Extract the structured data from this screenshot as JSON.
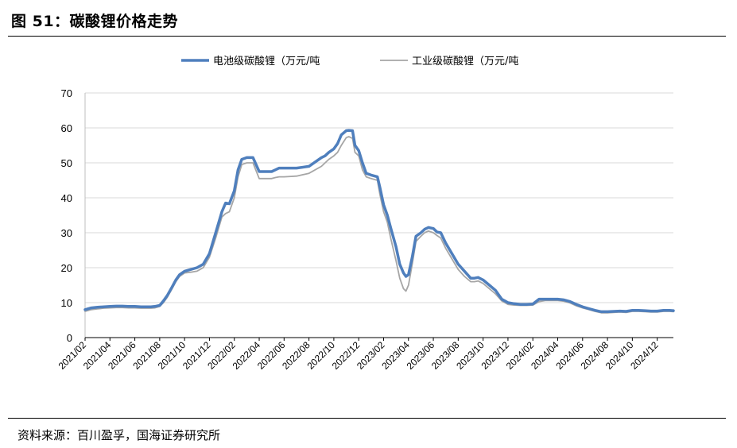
{
  "figure": {
    "title": "图 51：碳酸锂价格走势",
    "source": "资料来源：百川盈孚，国海证券研究所"
  },
  "chart_data": {
    "type": "line",
    "ylim": [
      0,
      70
    ],
    "yticks": [
      0,
      10,
      20,
      30,
      40,
      50,
      60,
      70
    ],
    "xlim": [
      0,
      47.3
    ],
    "xticks": [
      "2021/02",
      "2021/04",
      "2021/06",
      "2021/08",
      "2021/10",
      "2021/12",
      "2022/02",
      "2022/04",
      "2022/06",
      "2022/08",
      "2022/10",
      "2022/12",
      "2023/02",
      "2023/04",
      "2023/06",
      "2023/08",
      "2023/10",
      "2023/12",
      "2024/02",
      "2024/04",
      "2024/06",
      "2024/08",
      "2024/10",
      "2024/12"
    ],
    "grid": "horizontal",
    "legend": "top",
    "series": [
      {
        "name": "电池级碳酸锂（万元/吨",
        "color": "#4f7fbd",
        "x": [
          0,
          0.5,
          1,
          1.5,
          2,
          2.5,
          3,
          3.5,
          4,
          4.5,
          5,
          5.3,
          5.6,
          6,
          6.3,
          6.6,
          7,
          7.3,
          7.6,
          8,
          8.5,
          9,
          9.5,
          10,
          10.5,
          11,
          11.3,
          11.6,
          12,
          12.3,
          12.6,
          13,
          13.3,
          13.5,
          14,
          15,
          15.3,
          15.6,
          16,
          17,
          18,
          19,
          19.3,
          19.6,
          20,
          20.3,
          20.6,
          21,
          21.2,
          21.5,
          21.7,
          22,
          22.3,
          22.6,
          23,
          23.5,
          23.7,
          24,
          24.3,
          24.6,
          25,
          25.3,
          25.6,
          25.8,
          26,
          26.3,
          26.6,
          27,
          27.3,
          27.6,
          28,
          28.3,
          28.6,
          29,
          29.5,
          30,
          30.5,
          31,
          31.3,
          31.6,
          32,
          32.5,
          33,
          33.5,
          34,
          34.5,
          35,
          35.5,
          36,
          36.5,
          37,
          37.5,
          38,
          38.5,
          39,
          39.5,
          40,
          40.5,
          41,
          41.5,
          42,
          42.5,
          43,
          43.5,
          44,
          44.5,
          45,
          45.5,
          46,
          46.5,
          47,
          47.3
        ],
        "y": [
          8,
          8.5,
          8.7,
          8.8,
          8.9,
          9,
          9,
          8.9,
          8.9,
          8.8,
          8.8,
          8.8,
          8.9,
          9.2,
          10.5,
          12,
          14.5,
          16.5,
          18,
          19,
          19.5,
          20,
          21,
          24,
          30,
          36,
          38.5,
          38.3,
          42,
          48,
          51,
          51.5,
          51.5,
          51.5,
          47.5,
          47.5,
          48,
          48.5,
          48.5,
          48.5,
          49,
          51.5,
          52,
          53,
          54,
          55.5,
          58,
          59.2,
          59.3,
          59.2,
          55,
          53.5,
          50,
          47,
          46.5,
          46,
          43,
          38,
          35,
          31,
          26,
          21,
          18.5,
          17.5,
          18,
          23,
          29,
          30,
          31,
          31.5,
          31.2,
          30.2,
          30,
          27,
          24,
          21,
          19,
          17,
          17,
          17.2,
          16.5,
          15,
          13.5,
          11,
          10,
          9.7,
          9.5,
          9.5,
          9.6,
          11,
          11,
          11,
          11,
          10.8,
          10.3,
          9.5,
          8.8,
          8.3,
          7.8,
          7.4,
          7.4,
          7.5,
          7.6,
          7.5,
          7.8,
          7.8,
          7.7,
          7.6,
          7.6,
          7.8,
          7.8,
          7.7
        ]
      },
      {
        "name": "工业级碳酸锂（万元/吨",
        "color": "#a6a6a6",
        "x": [
          0,
          0.5,
          1,
          1.5,
          2,
          2.5,
          3,
          3.5,
          4,
          4.5,
          5,
          5.3,
          5.6,
          6,
          6.3,
          6.6,
          7,
          7.3,
          7.6,
          8,
          8.5,
          9,
          9.5,
          10,
          10.5,
          11,
          11.3,
          11.6,
          12,
          12.3,
          12.6,
          13,
          13.3,
          13.5,
          14,
          15,
          15.3,
          15.6,
          16,
          17,
          18,
          19,
          19.3,
          19.6,
          20,
          20.3,
          20.6,
          21,
          21.2,
          21.5,
          21.7,
          22,
          22.3,
          22.6,
          23,
          23.5,
          23.7,
          24,
          24.3,
          24.6,
          25,
          25.3,
          25.6,
          25.8,
          26,
          26.3,
          26.6,
          27,
          27.3,
          27.6,
          28,
          28.3,
          28.6,
          29,
          29.5,
          30,
          30.5,
          31,
          31.3,
          31.6,
          32,
          32.5,
          33,
          33.5,
          34,
          34.5,
          35,
          35.5,
          36,
          36.5,
          37,
          37.5,
          38,
          38.5,
          39,
          39.5,
          40,
          40.5,
          41,
          41.5,
          42,
          42.5,
          43,
          43.5,
          44,
          44.5,
          45,
          45.5,
          46,
          46.5,
          47,
          47.3
        ],
        "y": [
          7.5,
          8,
          8.2,
          8.4,
          8.5,
          8.6,
          8.6,
          8.5,
          8.5,
          8.4,
          8.4,
          8.4,
          8.5,
          8.9,
          10,
          11.5,
          14,
          16,
          17.5,
          18.5,
          18.7,
          19,
          20,
          23,
          28.5,
          34.5,
          35.5,
          36,
          40,
          46,
          49.5,
          50,
          50,
          50,
          45.5,
          45.5,
          45.8,
          46,
          46,
          46.2,
          47,
          49,
          50,
          51,
          52,
          53,
          55,
          57.2,
          57.5,
          57,
          53,
          52,
          48,
          46,
          45.5,
          45,
          41,
          36,
          33,
          28,
          22,
          17,
          14,
          13.3,
          15,
          21,
          27.5,
          29,
          30,
          30.5,
          30,
          29.2,
          28.5,
          25.5,
          22.5,
          19.5,
          17.5,
          16,
          16,
          16.2,
          15.5,
          14,
          12.5,
          10.5,
          9.5,
          9.3,
          9.2,
          9.2,
          9.3,
          10.3,
          10.6,
          10.6,
          10.6,
          10.4,
          9.9,
          9.1,
          8.5,
          8,
          7.5,
          7.1,
          7.1,
          7.2,
          7.3,
          7.2,
          7.5,
          7.5,
          7.4,
          7.3,
          7.3,
          7.5,
          7.5,
          7.4
        ]
      }
    ]
  }
}
